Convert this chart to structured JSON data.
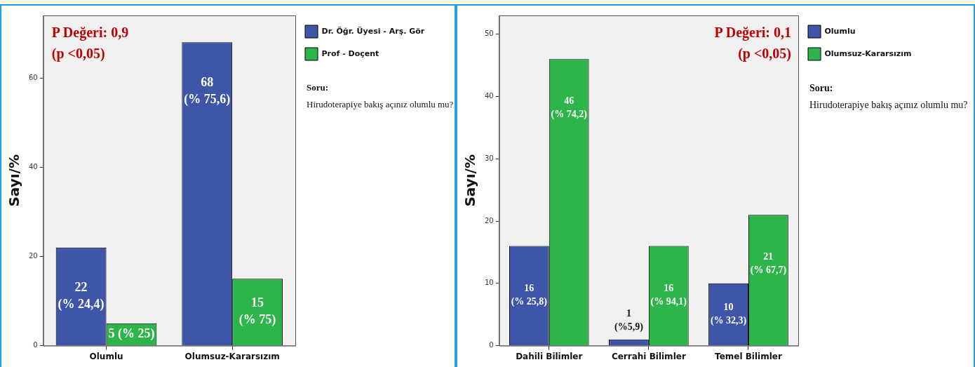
{
  "chart_data": [
    {
      "type": "bar",
      "ylabel": "Sayı/%",
      "categories": [
        "Olumlu",
        "Olumsuz-Kararsızım"
      ],
      "series": [
        {
          "name": "Dr. Öğr. Üyesi - Arş. Gör",
          "color": "#3f55a8",
          "values": [
            22,
            68
          ],
          "value_labels": [
            "22\n(% 24,4)",
            "68\n(% 75,6)"
          ]
        },
        {
          "name": "Prof - Doçent",
          "color": "#2db44a",
          "values": [
            5,
            15
          ],
          "value_labels": [
            "5 (% 25)",
            "15\n(% 75)"
          ]
        }
      ],
      "ylim": [
        0,
        74
      ],
      "yticks": [
        0,
        20,
        40,
        60
      ],
      "legend": "right",
      "annotations": [
        "P Değeri: 0,9",
        "(p <0,05)",
        "Soru:",
        "Hirudoterapiye bakış açınız olumlu mu?"
      ]
    },
    {
      "type": "bar",
      "ylabel": "Sayı/%",
      "categories": [
        "Dahili Bilimler",
        "Cerrahi Bilimler",
        "Temel Bilimler"
      ],
      "series": [
        {
          "name": "Olumlu",
          "color": "#3f55a8",
          "values": [
            16,
            1,
            10
          ],
          "value_labels": [
            "16\n(% 25,8)",
            "1\n(%5,9)",
            "10\n(% 32,3)"
          ]
        },
        {
          "name": "Olumsuz-Kararsızım",
          "color": "#2db44a",
          "values": [
            46,
            16,
            21
          ],
          "value_labels": [
            "46\n(% 74,2)",
            "16\n(% 94,1)",
            "21\n(% 67,7)"
          ]
        }
      ],
      "ylim": [
        0,
        53
      ],
      "yticks": [
        0,
        10,
        20,
        30,
        40,
        50
      ],
      "legend": "right",
      "annotations": [
        "P Değeri: 0,1",
        "(p <0,05)",
        "Soru:",
        "Hirudoterapiye bakış açınız olumlu mu?"
      ]
    }
  ]
}
